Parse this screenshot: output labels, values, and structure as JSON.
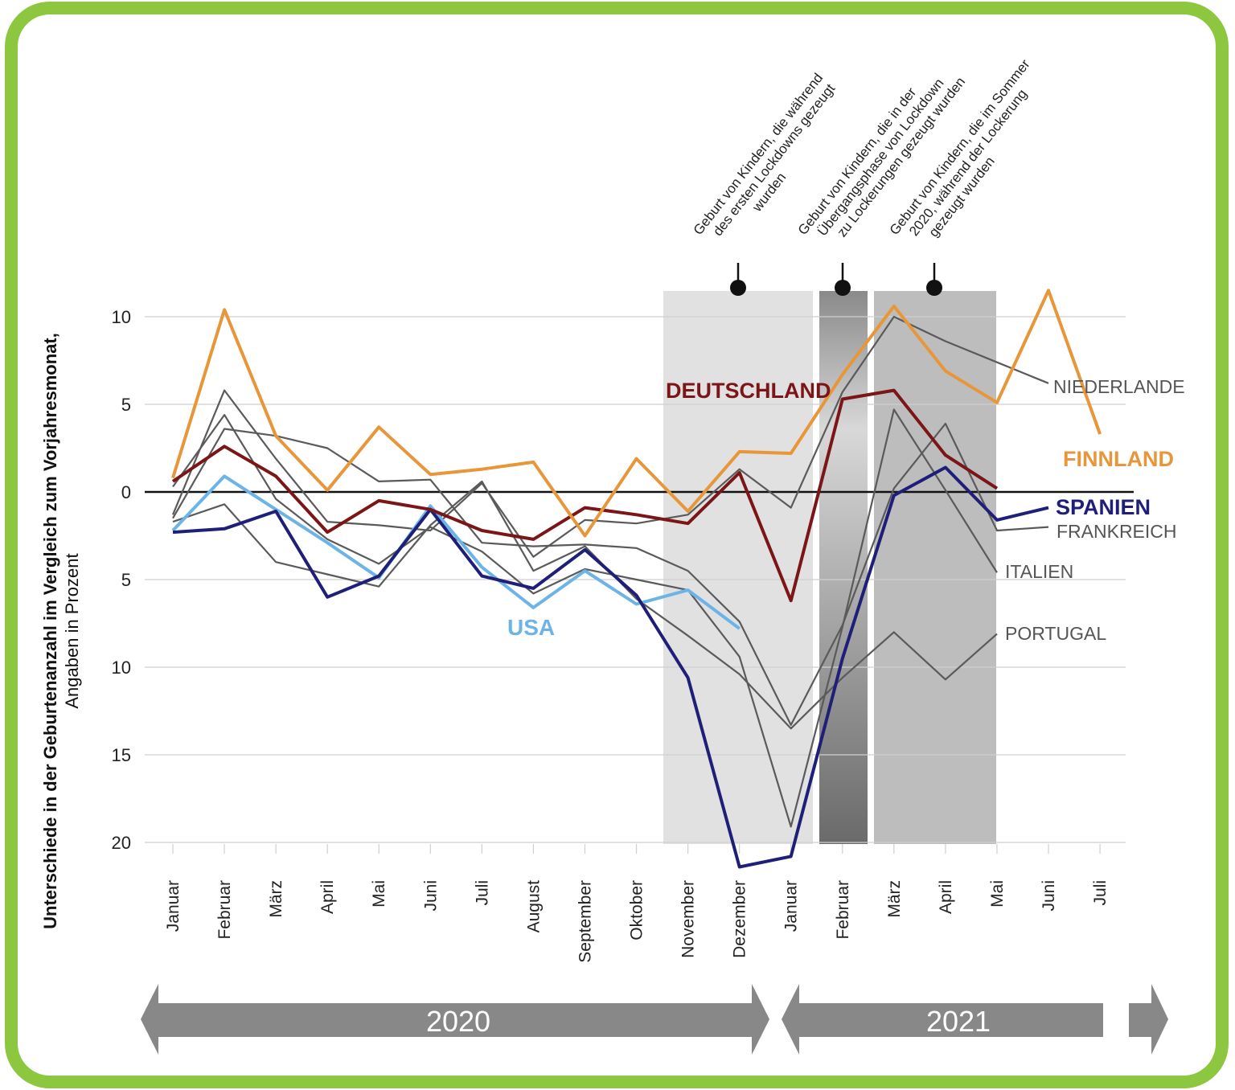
{
  "chart_data": {
    "type": "line",
    "ylabel": "Unterschiede in der Geburtenanzahl im Vergleich zum Vorjahresmonat,",
    "ylabel_note": "Angaben in Prozent",
    "categories": [
      "Januar",
      "Februar",
      "März",
      "April",
      "Mai",
      "Juni",
      "Juli",
      "August",
      "September",
      "Oktober",
      "November",
      "Dezember",
      "Januar",
      "Februar",
      "März",
      "April",
      "Mai",
      "Juni",
      "Juli"
    ],
    "years": [
      "2020",
      "2021"
    ],
    "annotations": [
      [
        "Geburt von Kindern, die während",
        "des ersten Lockdowns gezeugt",
        "wurden"
      ],
      [
        "Geburt von Kindern, die in der",
        "Übergangsphase von Lockdown",
        "zu Lockerungen gezeugt wurden"
      ],
      [
        "Geburt von Kindern, die im Sommer",
        "2020, während der Lockerung",
        "gezeugt wurden"
      ]
    ],
    "ylim": [
      -21.5,
      12
    ],
    "yticks": [
      {
        "value": 10,
        "label": "10"
      },
      {
        "value": 5,
        "label": "5"
      },
      {
        "value": 0,
        "label": "0"
      },
      {
        "value": -5,
        "label": "5"
      },
      {
        "value": -10,
        "label": "10"
      },
      {
        "value": -15,
        "label": "15"
      },
      {
        "value": -20,
        "label": "20"
      }
    ],
    "grid": true,
    "series": [
      {
        "name": "NIEDERLANDE",
        "color": "#5a5a5a",
        "values": [
          -1.3,
          5.8,
          1.9,
          -1.7,
          -1.9,
          -2.2,
          0.5,
          -3.7,
          -1.6,
          -1.8,
          -1.3,
          1.3,
          -0.9,
          5.7,
          10.0,
          8.6,
          7.4,
          6.2,
          null
        ]
      },
      {
        "name": "FRANKREICH",
        "color": "#5a5a5a",
        "values": [
          -1.5,
          3.6,
          3.2,
          2.5,
          0.6,
          0.7,
          -2.9,
          -3.1,
          -3.0,
          -3.2,
          -4.5,
          -7.4,
          -13.3,
          -7.6,
          0.2,
          3.9,
          -2.2,
          -2.0,
          null
        ]
      },
      {
        "name": "ITALIEN",
        "color": "#5a5a5a",
        "values": [
          0.3,
          4.4,
          -0.4,
          -2.7,
          -4.1,
          -2.0,
          -3.4,
          -5.8,
          -4.4,
          -5.0,
          -5.6,
          -9.4,
          -19.1,
          -7.7,
          4.7,
          0.1,
          -4.6,
          null,
          null
        ]
      },
      {
        "name": "PORTUGAL",
        "color": "#5a5a5a",
        "values": [
          -1.7,
          -0.7,
          -4.0,
          -4.7,
          -5.4,
          -1.9,
          0.6,
          -4.5,
          -3.1,
          -6.1,
          -8.2,
          -10.4,
          -13.5,
          -10.6,
          -8.0,
          -10.7,
          -8.1,
          null,
          null
        ]
      },
      {
        "name": "USA",
        "color": "#6cb4e8",
        "values": [
          -2.2,
          0.9,
          -1.0,
          -2.9,
          -4.9,
          -0.8,
          -4.3,
          -6.6,
          -4.5,
          -6.4,
          -5.6,
          -7.8,
          null,
          null,
          null,
          null,
          null,
          null,
          null
        ]
      },
      {
        "name": "SPANIEN",
        "color": "#1f1f7a",
        "values": [
          -2.3,
          -2.1,
          -1.1,
          -6.0,
          -4.8,
          -1.0,
          -4.8,
          -5.5,
          -3.3,
          -5.9,
          -10.6,
          -21.4,
          -20.8,
          -9.5,
          -0.2,
          1.4,
          -1.6,
          -0.9,
          null
        ]
      },
      {
        "name": "DEUTSCHLAND",
        "color": "#7b1518",
        "values": [
          0.6,
          2.6,
          0.9,
          -2.3,
          -0.5,
          -1.0,
          -2.2,
          -2.7,
          -0.9,
          -1.3,
          -1.8,
          1.1,
          -6.2,
          5.3,
          5.8,
          2.1,
          0.2,
          null,
          null
        ]
      },
      {
        "name": "FINNLAND",
        "color": "#e8963a",
        "values": [
          0.8,
          10.4,
          3.2,
          0.1,
          3.7,
          1.0,
          1.3,
          1.7,
          -2.5,
          1.9,
          -1.1,
          2.3,
          2.2,
          6.7,
          10.6,
          6.9,
          5.1,
          11.5,
          3.3
        ]
      }
    ]
  }
}
